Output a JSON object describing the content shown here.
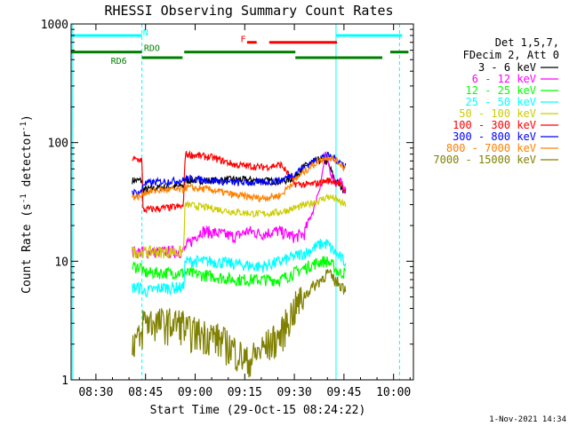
{
  "chart_data": {
    "type": "line",
    "title": "RHESSI Observing Summary Count Rates",
    "xlabel": "Start Time (29-Oct-15 08:24:22)",
    "ylabel_main": "Count Rate (s",
    "ylabel_sup1": "-1",
    "ylabel_mid": " detector",
    "ylabel_sup2": "-1",
    "ylabel_end": ")",
    "yscale": "log",
    "xlim_min": [
      502.5,
      606.0
    ],
    "ylim": [
      1,
      1000
    ],
    "x_ticks": [
      {
        "label": "08:30",
        "min": 510
      },
      {
        "label": "08:45",
        "min": 525
      },
      {
        "label": "09:00",
        "min": 540
      },
      {
        "label": "09:15",
        "min": 555
      },
      {
        "label": "09:30",
        "min": 570
      },
      {
        "label": "09:45",
        "min": 585
      },
      {
        "label": "10:00",
        "min": 600
      }
    ],
    "y_ticks": [
      {
        "label": "1",
        "value": 1
      },
      {
        "label": "10",
        "value": 10
      },
      {
        "label": "100",
        "value": 100
      },
      {
        "label": "1000",
        "value": 1000
      }
    ],
    "legend_header": [
      "Det 1,5,7,",
      "FDecim 2, Att 0"
    ],
    "legend_placement": "right",
    "footer_date": "1-Nov-2021 14:34",
    "flag_labels": [
      {
        "text": "N",
        "color": "#00ffff",
        "x": 524.2,
        "y": 800
      },
      {
        "text": "RDO",
        "color": "#008000",
        "x": 524.5,
        "y": 590
      },
      {
        "text": "RD6",
        "color": "#008000",
        "x": 514.5,
        "y": 460
      },
      {
        "text": "F",
        "color": "#ff0000",
        "x": 553.7,
        "y": 700
      }
    ],
    "flag_bars": [
      {
        "name": "night",
        "color": "#00ffff",
        "y": 800,
        "x0": 502.5,
        "x1": 523.9
      },
      {
        "name": "night",
        "color": "#00ffff",
        "y": 800,
        "x0": 582.6,
        "x1": 602.6
      },
      {
        "name": "saa",
        "color": "#008000",
        "y": 580,
        "x0": 502.5,
        "x1": 523.9
      },
      {
        "name": "saa",
        "color": "#008000",
        "y": 580,
        "x0": 536.7,
        "x1": 570.3
      },
      {
        "name": "saa",
        "color": "#008000",
        "y": 580,
        "x0": 599.0,
        "x1": 604.5
      },
      {
        "name": "decim",
        "color": "#008000",
        "y": 520,
        "x0": 523.9,
        "x1": 536.2
      },
      {
        "name": "decim",
        "color": "#008000",
        "y": 520,
        "x0": 570.3,
        "x1": 596.6
      },
      {
        "name": "flare",
        "color": "#ff0000",
        "y": 700,
        "x0": 555.7,
        "x1": 558.6
      },
      {
        "name": "flare",
        "color": "#ff0000",
        "y": 700,
        "x0": 562.4,
        "x1": 582.9
      }
    ],
    "vlines": [
      {
        "x": 503.0,
        "color": "#00ffff",
        "style": "solid"
      },
      {
        "x": 523.9,
        "color": "#00ffff",
        "style": "dashed"
      },
      {
        "x": 582.6,
        "color": "#00ffff",
        "style": "solid"
      },
      {
        "x": 601.8,
        "color": "#00ffff",
        "style": "dashed"
      }
    ],
    "data_range_min": [
      521.0,
      585.5
    ],
    "series": [
      {
        "name": "3 - 6 keV",
        "color": "#000000",
        "x": [
          521.5,
          523.9,
          524.2,
          530.0,
          536.5,
          537.0,
          545.0,
          552.0,
          560.0,
          566.0,
          570.0,
          572.0,
          575.0,
          578.0,
          580.0,
          582.0,
          583.5,
          585.0
        ],
        "y": [
          48,
          48,
          40,
          42,
          43,
          48,
          48,
          49,
          48,
          47,
          50,
          60,
          68,
          72,
          68,
          50,
          44,
          40
        ]
      },
      {
        "name": "6 - 12 keV",
        "color": "#ff00ff",
        "x": [
          521.5,
          523.9,
          524.2,
          530.0,
          536.5,
          537.0,
          542.0,
          548.0,
          552.0,
          556.0,
          560.0,
          565.0,
          570.0,
          573.0,
          576.0,
          578.0,
          579.5,
          581.0,
          582.5,
          584.0,
          585.0
        ],
        "y": [
          12,
          12,
          12,
          12,
          12,
          13,
          18,
          17,
          16,
          18,
          17,
          18,
          16,
          17,
          28,
          45,
          80,
          55,
          45,
          48,
          40
        ]
      },
      {
        "name": "12 - 25 keV",
        "color": "#00ff00",
        "x": [
          521.5,
          523.9,
          524.2,
          530.0,
          536.5,
          537.0,
          545.0,
          552.0,
          560.0,
          566.0,
          570.0,
          574.0,
          578.0,
          580.0,
          582.0,
          583.5,
          585.0
        ],
        "y": [
          9,
          9,
          8,
          8,
          8,
          8,
          7.5,
          7,
          7,
          7,
          8,
          9,
          10,
          10,
          9,
          8,
          8
        ]
      },
      {
        "name": "25 - 50 keV",
        "color": "#00ffff",
        "x": [
          521.5,
          523.9,
          524.2,
          530.0,
          536.5,
          537.0,
          545.0,
          552.0,
          560.0,
          566.0,
          570.0,
          574.0,
          578.0,
          580.0,
          582.0,
          583.5,
          585.0
        ],
        "y": [
          6,
          6,
          5.5,
          6,
          6,
          10,
          10,
          9.5,
          9,
          10,
          11,
          12,
          14,
          14,
          12,
          11,
          10
        ]
      },
      {
        "name": "50 - 100 keV",
        "color": "#cccc00",
        "x": [
          521.5,
          523.9,
          524.2,
          530.0,
          536.5,
          537.0,
          545.0,
          552.0,
          560.0,
          566.0,
          570.0,
          574.0,
          578.0,
          580.0,
          582.0,
          583.5,
          585.0
        ],
        "y": [
          12,
          12,
          12,
          12,
          12,
          30,
          28,
          26,
          25,
          26,
          28,
          30,
          33,
          35,
          34,
          32,
          30
        ]
      },
      {
        "name": "100 - 300 keV",
        "color": "#ff0000",
        "x": [
          521.5,
          523.9,
          524.2,
          530.0,
          536.5,
          537.0,
          545.0,
          552.0,
          560.0,
          566.0,
          570.0,
          574.0,
          578.0,
          580.0,
          582.0,
          583.5,
          585.0
        ],
        "y": [
          72,
          72,
          27,
          28,
          29,
          80,
          75,
          65,
          62,
          65,
          45,
          44,
          46,
          48,
          47,
          46,
          40
        ]
      },
      {
        "name": "300 - 800 keV",
        "color": "#0000ff",
        "x": [
          521.5,
          523.9,
          524.2,
          530.0,
          536.5,
          537.0,
          545.0,
          552.0,
          560.0,
          566.0,
          570.0,
          574.0,
          578.0,
          580.0,
          582.0,
          583.5,
          585.0
        ],
        "y": [
          38,
          38,
          45,
          47,
          48,
          50,
          48,
          46,
          46,
          48,
          55,
          65,
          75,
          78,
          74,
          70,
          65
        ]
      },
      {
        "name": "800 - 7000 keV",
        "color": "#ff8000",
        "x": [
          521.5,
          523.9,
          524.2,
          530.0,
          536.5,
          537.0,
          545.0,
          552.0,
          560.0,
          566.0,
          570.0,
          574.0,
          578.0,
          580.0,
          582.0,
          583.5,
          585.0
        ],
        "y": [
          35,
          35,
          38,
          40,
          40,
          42,
          40,
          36,
          34,
          36,
          48,
          60,
          72,
          76,
          72,
          68,
          62
        ]
      },
      {
        "name": "7000 - 15000 keV",
        "color": "#808000",
        "x": [
          521.5,
          523.9,
          524.2,
          530.0,
          536.5,
          537.0,
          545.0,
          552.0,
          556.0,
          560.0,
          566.0,
          570.0,
          574.0,
          578.0,
          580.0,
          582.0,
          583.5,
          585.0
        ],
        "y": [
          2.2,
          2.2,
          3.2,
          3.0,
          3.0,
          2.6,
          2.4,
          1.8,
          1.4,
          1.8,
          2.4,
          4.0,
          5.5,
          7.0,
          8.0,
          7.0,
          6.5,
          6.0
        ]
      }
    ]
  }
}
